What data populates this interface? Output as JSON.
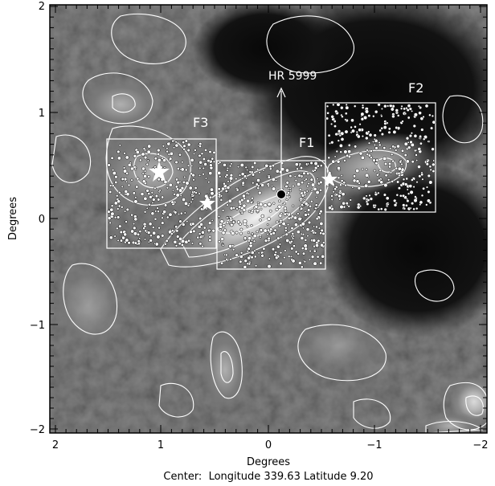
{
  "figure": {
    "annotations": {
      "star_name": "HR 5999",
      "fields": [
        "F1",
        "F2",
        "F3"
      ]
    },
    "axes": {
      "xlabel": "Degrees",
      "ylabel": "Degrees",
      "x_ticks": [
        "2",
        "1",
        "0",
        "−1",
        "−2"
      ],
      "y_ticks": [
        "2",
        "1",
        "0",
        "−1",
        "−2"
      ]
    },
    "caption": "Center:  Longitude 339.63 Latitude 9.20",
    "colors": {
      "frame": "#000000",
      "contour": "#ffffff",
      "background_dark": "#141414",
      "background_mid": "#555555",
      "cloud_bright": "#e6e6e6"
    }
  }
}
